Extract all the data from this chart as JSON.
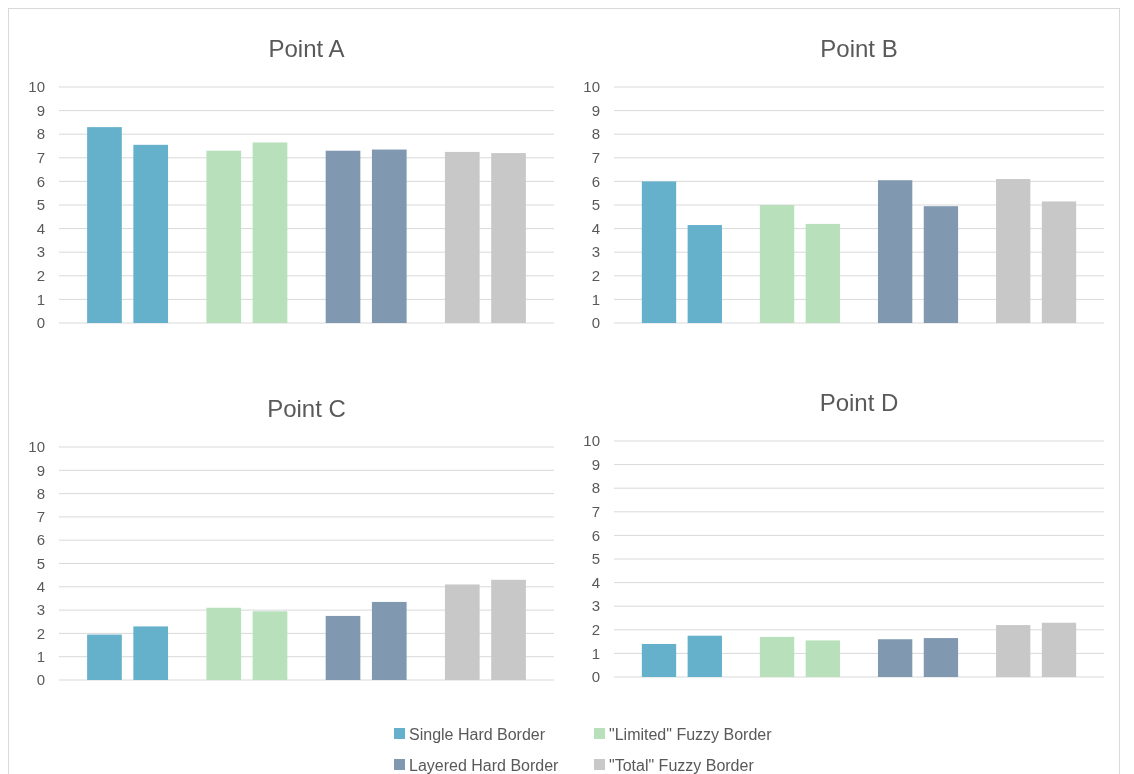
{
  "chart_data": [
    {
      "type": "bar",
      "title": "Point A",
      "categories": [
        null,
        null,
        null,
        null
      ],
      "annotations": [
        "Single Hard Border",
        "\"Limited\" Fuzzy Border",
        "Layered Hard Border",
        "\"Total\" Fuzzy Border"
      ],
      "tick_labels": "y",
      "ylim": [
        0,
        10
      ],
      "yticks": [
        0,
        1,
        2,
        3,
        4,
        5,
        6,
        7,
        8,
        9,
        10
      ],
      "grid": "y",
      "series": [
        {
          "colors": [
            "#65b1cc",
            "#b8e0bb",
            "#8099b0",
            "#c8c8c8"
          ],
          "values": [
            8.3,
            7.3,
            7.3,
            7.25
          ]
        },
        {
          "colors": [
            "#65b1cc",
            "#b8e0bb",
            "#8099b0",
            "#c8c8c8"
          ],
          "values": [
            7.55,
            7.65,
            7.35,
            7.2
          ]
        }
      ]
    },
    {
      "type": "bar",
      "title": "Point B",
      "categories": [
        null,
        null,
        null,
        null
      ],
      "tick_labels": "y",
      "ylim": [
        0,
        10
      ],
      "yticks": [
        0,
        1,
        2,
        3,
        4,
        5,
        6,
        7,
        8,
        9,
        10
      ],
      "grid": "y",
      "series": [
        {
          "colors": [
            "#65b1cc",
            "#b8e0bb",
            "#8099b0",
            "#c8c8c8"
          ],
          "values": [
            6.0,
            5.0,
            6.05,
            6.1
          ]
        },
        {
          "colors": [
            "#65b1cc",
            "#b8e0bb",
            "#8099b0",
            "#c8c8c8"
          ],
          "values": [
            4.15,
            4.2,
            4.95,
            5.15
          ]
        }
      ]
    },
    {
      "type": "bar",
      "title": "Point C",
      "categories": [
        null,
        null,
        null,
        null
      ],
      "tick_labels": "y",
      "ylim": [
        0,
        10
      ],
      "yticks": [
        0,
        1,
        2,
        3,
        4,
        5,
        6,
        7,
        8,
        9,
        10
      ],
      "grid": "y",
      "series": [
        {
          "colors": [
            "#65b1cc",
            "#b8e0bb",
            "#8099b0",
            "#c8c8c8"
          ],
          "values": [
            1.95,
            3.1,
            2.75,
            4.1
          ]
        },
        {
          "colors": [
            "#65b1cc",
            "#b8e0bb",
            "#8099b0",
            "#c8c8c8"
          ],
          "values": [
            2.3,
            2.95,
            3.35,
            4.3
          ]
        }
      ]
    },
    {
      "type": "bar",
      "title": "Point D",
      "categories": [
        null,
        null,
        null,
        null
      ],
      "tick_labels": "y",
      "ylim": [
        0,
        10
      ],
      "yticks": [
        0,
        1,
        2,
        3,
        4,
        5,
        6,
        7,
        8,
        9,
        10
      ],
      "grid": "y",
      "series": [
        {
          "colors": [
            "#65b1cc",
            "#b8e0bb",
            "#8099b0",
            "#c8c8c8"
          ],
          "values": [
            1.4,
            1.7,
            1.6,
            2.2
          ]
        },
        {
          "colors": [
            "#65b1cc",
            "#b8e0bb",
            "#8099b0",
            "#c8c8c8"
          ],
          "values": [
            1.75,
            1.55,
            1.65,
            2.3
          ]
        }
      ]
    }
  ]
}
